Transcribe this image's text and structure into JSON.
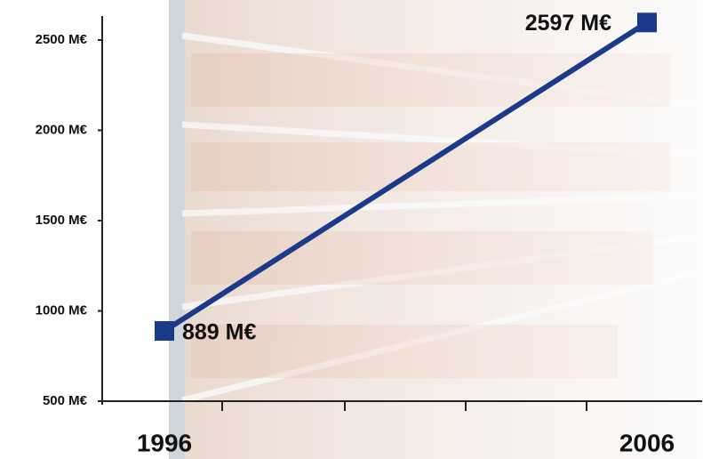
{
  "chart_data": {
    "type": "line",
    "categories": [
      "1996",
      "2006"
    ],
    "series": [
      {
        "color": "#1b3a8a",
        "values": [
          889,
          2597
        ],
        "value_labels": [
          "889 M€",
          "2597 M€"
        ]
      }
    ],
    "ylim": [
      500,
      2630
    ],
    "yticks": [
      {
        "value": 500,
        "label": "500 M€"
      },
      {
        "value": 1000,
        "label": "1000 M€"
      },
      {
        "value": 1500,
        "label": "1500 M€"
      },
      {
        "value": 2000,
        "label": "2000 M€"
      },
      {
        "value": 2500,
        "label": "2500 M€"
      }
    ]
  }
}
